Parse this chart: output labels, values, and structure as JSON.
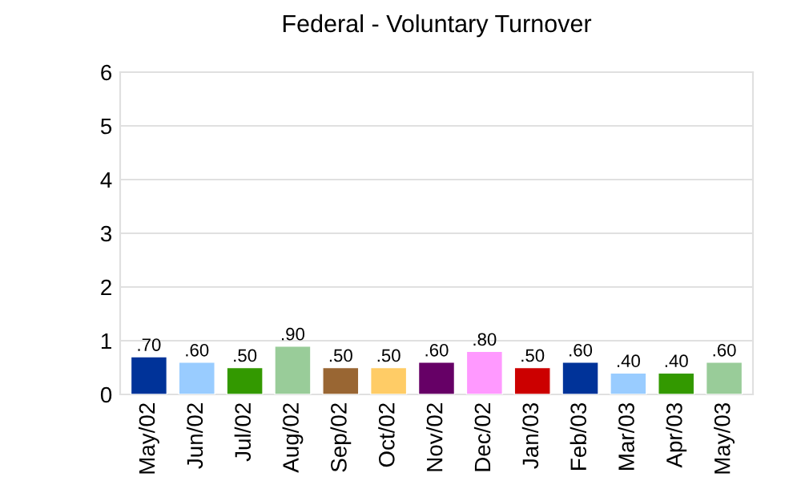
{
  "chart_data": {
    "type": "bar",
    "title": "Federal - Voluntary Turnover",
    "categories": [
      "May/02",
      "Jun/02",
      "Jul/02",
      "Aug/02",
      "Sep/02",
      "Oct/02",
      "Nov/02",
      "Dec/02",
      "Jan/03",
      "Feb/03",
      "Mar/03",
      "Apr/03",
      "May/03"
    ],
    "values": [
      0.7,
      0.6,
      0.5,
      0.9,
      0.5,
      0.5,
      0.6,
      0.8,
      0.5,
      0.6,
      0.4,
      0.4,
      0.6
    ],
    "value_labels": [
      ".70",
      ".60",
      ".50",
      ".90",
      ".50",
      ".50",
      ".60",
      ".80",
      ".50",
      ".60",
      ".40",
      ".40",
      ".60"
    ],
    "colors": [
      "#003399",
      "#99ccff",
      "#339900",
      "#99cc99",
      "#996633",
      "#ffcc66",
      "#660066",
      "#ff99ff",
      "#cc0000",
      "#003399",
      "#99ccff",
      "#339900",
      "#99cc99"
    ],
    "ylim": [
      0,
      6
    ],
    "yticks": [
      0,
      1,
      2,
      3,
      4,
      5,
      6
    ],
    "grid": "y"
  }
}
